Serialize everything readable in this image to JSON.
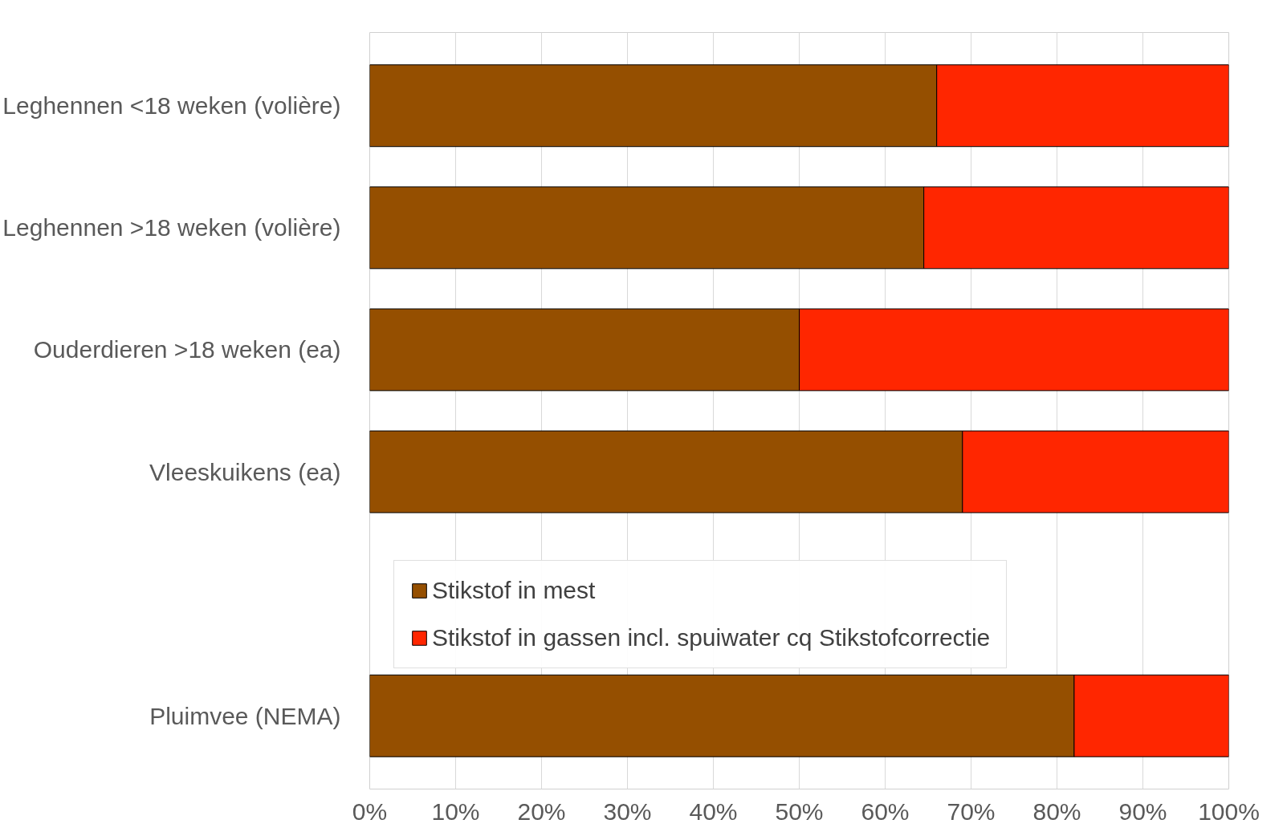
{
  "chart_data": {
    "type": "bar",
    "orientation": "horizontal",
    "stacked": true,
    "categories": [
      "Leghennen <18 weken (volière)",
      "Leghennen >18 weken (volière)",
      "Ouderdieren >18 weken (ea)",
      "Vleeskuikens (ea)",
      null,
      "Pluimvee (NEMA)"
    ],
    "series": [
      {
        "name": "Stikstof in mest",
        "color": "#954f00",
        "values": [
          66,
          64.5,
          50,
          69,
          null,
          82
        ]
      },
      {
        "name": "Stikstof in gassen incl. spuiwater cq Stikstofcorrectie",
        "color": "#ff2600",
        "values": [
          34,
          35.5,
          50,
          31,
          null,
          18
        ]
      }
    ],
    "xlim": [
      0,
      100
    ],
    "xticks": [
      {
        "value": 0,
        "label": "0%"
      },
      {
        "value": 10,
        "label": "10%"
      },
      {
        "value": 20,
        "label": "20%"
      },
      {
        "value": 30,
        "label": "30%"
      },
      {
        "value": 40,
        "label": "40%"
      },
      {
        "value": 50,
        "label": "50%"
      },
      {
        "value": 60,
        "label": "60%"
      },
      {
        "value": 70,
        "label": "70%"
      },
      {
        "value": 80,
        "label": "80%"
      },
      {
        "value": 90,
        "label": "90%"
      },
      {
        "value": 100,
        "label": "100%"
      }
    ],
    "grid": "x",
    "legend": "bottom"
  }
}
